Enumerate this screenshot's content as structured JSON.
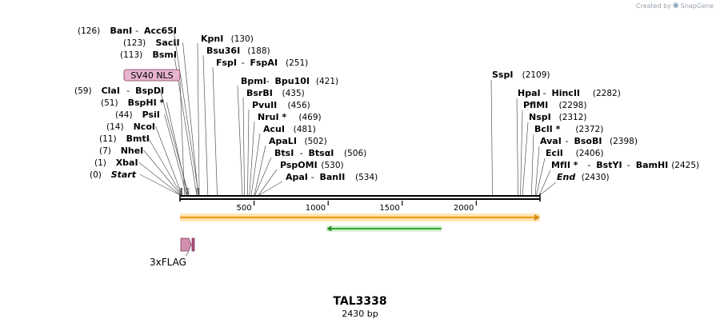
{
  "credit": {
    "text": "Created by",
    "brand": "SnapGene",
    "icon": "snapgene-logo-icon"
  },
  "construct": {
    "name": "TAL3338",
    "length_label": "2430 bp",
    "length": 2430
  },
  "ruler_ticks": [
    {
      "pos": 500,
      "label": "500"
    },
    {
      "pos": 1000,
      "label": "1000"
    },
    {
      "pos": 1500,
      "label": "1500"
    },
    {
      "pos": 2000,
      "label": "2000"
    }
  ],
  "sites_left": [
    {
      "pos": 0,
      "name": "Start",
      "name2": "",
      "coord": "(0)",
      "italic": true
    },
    {
      "pos": 1,
      "name": "XbaI",
      "name2": "",
      "coord": "(1)"
    },
    {
      "pos": 7,
      "name": "NheI",
      "name2": "",
      "coord": "(7)"
    },
    {
      "pos": 11,
      "name": "BmtI",
      "name2": "",
      "coord": "(11)"
    },
    {
      "pos": 14,
      "name": "NcoI",
      "name2": "",
      "coord": "(14)"
    },
    {
      "pos": 44,
      "name": "PsiI",
      "name2": "",
      "coord": "(44)"
    },
    {
      "pos": 51,
      "name": "BspHI *",
      "name2": "",
      "coord": "(51)"
    },
    {
      "pos": 59,
      "name": "ClaI",
      "name2": "BspDI",
      "coord": "(59)"
    },
    {
      "pos": 113,
      "name": "BsmI",
      "name2": "",
      "coord": "(113)"
    },
    {
      "pos": 123,
      "name": "SacII",
      "name2": "",
      "coord": "(123)"
    },
    {
      "pos": 126,
      "name": "BanI",
      "name2": "Acc65I",
      "coord": "(126)"
    }
  ],
  "sites_mid": [
    {
      "pos": 130,
      "name": "KpnI",
      "name2": "",
      "coord": "(130)"
    },
    {
      "pos": 188,
      "name": "Bsu36I",
      "name2": "",
      "coord": "(188)"
    },
    {
      "pos": 251,
      "name": "FspI",
      "name2": "FspAI",
      "coord": "(251)"
    }
  ],
  "sites_center": [
    {
      "pos": 421,
      "name": "BpmI",
      "name2": "Bpu10I",
      "coord": "(421)"
    },
    {
      "pos": 435,
      "name": "BsrBI",
      "name2": "",
      "coord": "(435)"
    },
    {
      "pos": 456,
      "name": "PvuII",
      "name2": "",
      "coord": "(456)"
    },
    {
      "pos": 469,
      "name": "NruI *",
      "name2": "",
      "coord": "(469)"
    },
    {
      "pos": 481,
      "name": "AcuI",
      "name2": "",
      "coord": "(481)"
    },
    {
      "pos": 502,
      "name": "ApaLI",
      "name2": "",
      "coord": "(502)"
    },
    {
      "pos": 506,
      "name": "BtsI",
      "name2": "BtsαI",
      "coord": "(506)"
    },
    {
      "pos": 530,
      "name": "PspOMI",
      "name2": "",
      "coord": "(530)"
    },
    {
      "pos": 534,
      "name": "ApaI",
      "name2": "BanII",
      "coord": "(534)"
    }
  ],
  "sites_right": [
    {
      "pos": 2109,
      "name": "SspI",
      "name2": "",
      "coord": "(2109)"
    },
    {
      "pos": 2282,
      "name": "HpaI",
      "name2": "HincII",
      "coord": "(2282)"
    },
    {
      "pos": 2298,
      "name": "PflMI",
      "name2": "",
      "coord": "(2298)"
    },
    {
      "pos": 2312,
      "name": "NspI",
      "name2": "",
      "coord": "(2312)"
    },
    {
      "pos": 2372,
      "name": "BclI *",
      "name2": "",
      "coord": "(2372)"
    },
    {
      "pos": 2398,
      "name": "AvaI",
      "name2": "BsoBI",
      "coord": "(2398)"
    },
    {
      "pos": 2406,
      "name": "EciI",
      "name2": "",
      "coord": "(2406)"
    },
    {
      "pos": 2425,
      "name": "MfII *",
      "name2": "BstYI",
      "name3": "BamHI",
      "coord": "(2425)"
    },
    {
      "pos": 2430,
      "name": "End",
      "name2": "",
      "coord": "(2430)",
      "italic": true
    }
  ],
  "features": [
    {
      "name": "SV40 NLS",
      "start": 0,
      "end": 0,
      "color": "#e8b4cf",
      "label_only": true
    },
    {
      "name": "3xFLAG",
      "start": 0,
      "end": 66,
      "color": "#d08fb0",
      "type": "small-arrows"
    },
    {
      "name": "",
      "start": 0,
      "end": 2430,
      "color": "#f0a020",
      "type": "orange-bar"
    },
    {
      "name": "",
      "start": 990,
      "end": 1765,
      "color": "#50b848",
      "type": "green-arrow-reverse"
    }
  ],
  "colors": {
    "backbone": "#000000",
    "orange": "#f5a623",
    "green": "#3aa935",
    "pink": "#e0a8c8"
  }
}
